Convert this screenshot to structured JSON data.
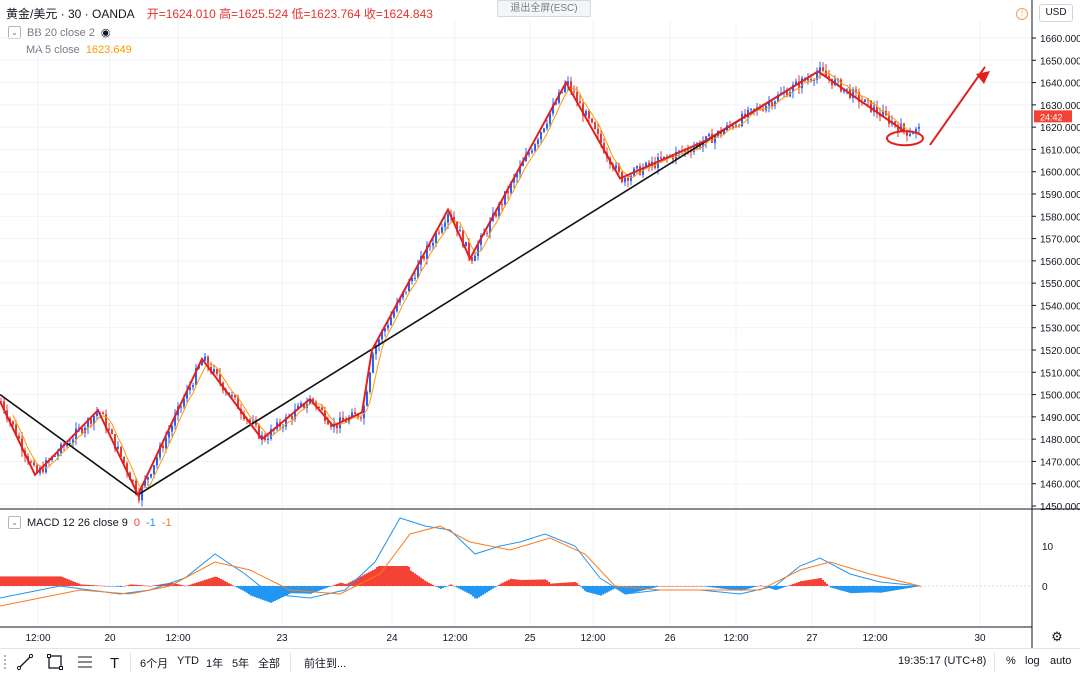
{
  "header": {
    "symbol": "黄金/美元 · 30 · OANDA",
    "ohlc": "开=1624.010 高=1625.524 低=1623.764 收=1624.843",
    "bb_label": "BB 20 close 2",
    "ma_label": "MA 5 close",
    "ma_value": "1623.649",
    "macd_label": "MACD 12 26 close 9",
    "macd_v1": "0",
    "macd_v2": "-1",
    "macd_v3": "-1"
  },
  "esc_button": "退出全屏(ESC)",
  "currency": "USD",
  "price_tag": "24:42",
  "toolbar": {
    "ranges": [
      "6个月",
      "YTD",
      "1年",
      "5年",
      "全部"
    ],
    "goto": "前往到...",
    "clock": "19:35:17 (UTC+8)",
    "percent": "%",
    "log": "log",
    "auto": "auto"
  },
  "colors": {
    "up": "#26a69a",
    "down": "#ef5350",
    "candle_up": "#2962ff",
    "candle_down": "#e53935",
    "zigzag": "#e02020",
    "trendline": "#111111",
    "macd_line": "#2196f3",
    "signal_line": "#ff7a1a",
    "hist_pos": "#f44336",
    "hist_neg": "#2196f3",
    "ma": "#ff9800"
  },
  "chart_data": {
    "type": "candlestick",
    "price_axis": {
      "ticks": [
        "1660.000",
        "1650.000",
        "1640.000",
        "1630.000",
        "1620.000",
        "1610.000",
        "1600.000",
        "1590.000",
        "1580.000",
        "1570.000",
        "1560.000",
        "1550.000",
        "1540.000",
        "1530.000",
        "1520.000",
        "1510.000",
        "1500.000",
        "1490.000",
        "1480.000",
        "1470.000",
        "1460.000",
        "1450.000"
      ],
      "ylim": [
        1450,
        1665
      ]
    },
    "time_axis": [
      "12:00",
      "20",
      "12:00",
      "23",
      "24",
      "12:00",
      "25",
      "12:00",
      "26",
      "12:00",
      "27",
      "12:00",
      "30"
    ],
    "zigzag": [
      [
        0,
        1497
      ],
      [
        35,
        1464
      ],
      [
        98,
        1493
      ],
      [
        138,
        1455
      ],
      [
        202,
        1516
      ],
      [
        262,
        1480
      ],
      [
        310,
        1498
      ],
      [
        333,
        1486
      ],
      [
        362,
        1492
      ],
      [
        372,
        1520
      ],
      [
        448,
        1583
      ],
      [
        470,
        1561
      ],
      [
        566,
        1640
      ],
      [
        620,
        1597
      ],
      [
        706,
        1614
      ],
      [
        818,
        1645
      ],
      [
        905,
        1618
      ]
    ],
    "trendline": [
      [
        0,
        1500
      ],
      [
        138,
        1455
      ],
      [
        818,
        1645
      ]
    ],
    "last_close": 1624.843,
    "macd_axis": {
      "ticks": [
        "10",
        "0"
      ],
      "ylim": [
        -7,
        18
      ]
    }
  }
}
